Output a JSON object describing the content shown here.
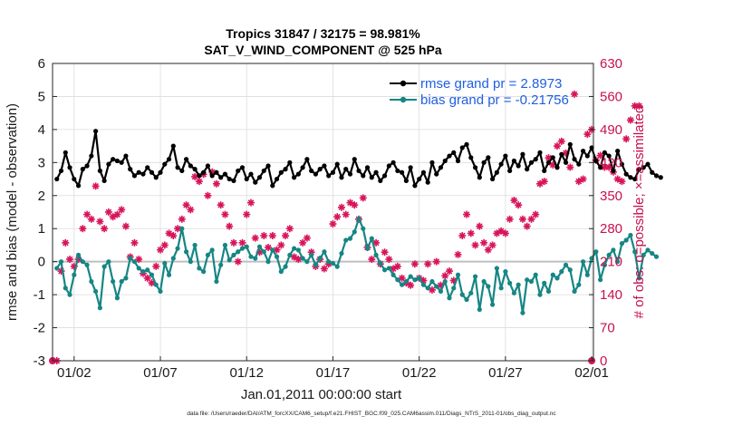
{
  "chart_data": {
    "type": "line",
    "title_line1": "Tropics 31847 / 32175 = 98.981%",
    "title_line2": "SAT_V_WIND_COMPONENT @ 525 hPa",
    "xlabel": "Jan.01,2011 00:00:00 start",
    "ylabel_left": "rmse and bias (model - observation)",
    "ylabel_right": "# of obs: o=possible; ×=assimilated",
    "footnote": "data file: /Users/raeder/DAI/ATM_forcXX/CAM6_setup/f.e21.FHIST_BGC.f09_025.CAM6assim.011/Diags_NTrS_2011-01/obs_diag_output.nc",
    "xlim": [
      0.75,
      32.1
    ],
    "ylim_left": [
      -3,
      6
    ],
    "ylim_right": [
      0,
      630
    ],
    "yticks_left": [
      "-3",
      "-2",
      "-1",
      "0",
      "1",
      "2",
      "3",
      "4",
      "5",
      "6"
    ],
    "yticks_right": [
      "0",
      "70",
      "140",
      "210",
      "280",
      "350",
      "420",
      "490",
      "560",
      "630"
    ],
    "xticks": [
      {
        "x": 2,
        "label": "01/02"
      },
      {
        "x": 7,
        "label": "01/07"
      },
      {
        "x": 12,
        "label": "01/12"
      },
      {
        "x": 17,
        "label": "01/17"
      },
      {
        "x": 22,
        "label": "01/22"
      },
      {
        "x": 27,
        "label": "01/27"
      },
      {
        "x": 32,
        "label": "02/01"
      }
    ],
    "grid": true,
    "legend": [
      "rmse grand pr = 2.8973",
      "bias grand pr = -0.21756"
    ],
    "legend_location": "top-right",
    "colors": {
      "rmse": "#000000",
      "bias": "#168684",
      "obs": "#d8145a",
      "zero": "#bfbfbf",
      "grid": "#dcdcdc"
    },
    "x_step": 0.25,
    "x_start": 1.0,
    "series": [
      {
        "name": "rmse",
        "axis": "left",
        "values": [
          2.5,
          2.75,
          3.3,
          2.85,
          2.5,
          2.3,
          2.8,
          2.9,
          3.2,
          3.95,
          2.75,
          2.45,
          2.95,
          3.1,
          3.05,
          3.0,
          3.2,
          2.8,
          2.6,
          2.7,
          2.65,
          2.85,
          2.7,
          2.55,
          2.7,
          2.95,
          3.1,
          3.5,
          2.85,
          2.75,
          3.1,
          2.9,
          2.8,
          2.6,
          2.7,
          2.9,
          2.6,
          2.7,
          2.55,
          2.65,
          2.5,
          2.45,
          2.75,
          2.85,
          2.5,
          2.65,
          2.4,
          2.55,
          2.75,
          2.9,
          2.3,
          2.5,
          2.7,
          2.8,
          3.0,
          2.55,
          2.65,
          2.85,
          3.1,
          2.75,
          2.65,
          2.8,
          2.9,
          2.6,
          2.7,
          2.95,
          2.55,
          2.8,
          2.65,
          3.1,
          2.75,
          2.6,
          2.85,
          2.55,
          2.7,
          2.45,
          2.6,
          2.9,
          3.0,
          2.75,
          2.7,
          2.45,
          2.85,
          2.3,
          2.5,
          2.7,
          2.4,
          3.0,
          2.65,
          2.85,
          3.05,
          3.2,
          3.3,
          3.05,
          3.45,
          3.55,
          3.15,
          2.85,
          2.55,
          3.0,
          3.15,
          2.5,
          2.7,
          2.95,
          3.2,
          2.75,
          3.05,
          2.9,
          3.25,
          2.8,
          3.0,
          3.1,
          3.3,
          2.75,
          3.0,
          3.15,
          2.85,
          3.25,
          3.0,
          3.55,
          3.1,
          2.95,
          3.35,
          3.2,
          3.45,
          3.05,
          2.85,
          3.3,
          3.2,
          2.75,
          3.35,
          2.95,
          2.65,
          2.55,
          2.5,
          2.8,
          2.85,
          2.95,
          2.7,
          2.6,
          2.55
        ]
      },
      {
        "name": "bias",
        "axis": "left",
        "values": [
          -0.2,
          0.0,
          -0.8,
          -1.0,
          -0.4,
          0.2,
          0.0,
          -0.1,
          -0.6,
          -0.9,
          -1.4,
          -0.15,
          0.0,
          -0.6,
          -1.1,
          -0.6,
          -0.5,
          0.1,
          0.0,
          -0.2,
          -0.3,
          -0.25,
          -0.4,
          -0.7,
          -0.9,
          -0.05,
          -0.4,
          0.1,
          0.4,
          1.0,
          0.3,
          0.0,
          0.5,
          -0.2,
          -0.3,
          0.2,
          0.35,
          -0.6,
          -0.1,
          0.5,
          0.05,
          0.2,
          0.3,
          0.4,
          0.45,
          0.15,
          0.1,
          0.45,
          0.3,
          0.0,
          0.35,
          0.15,
          -0.3,
          -0.15,
          0.2,
          0.4,
          0.35,
          0.1,
          0.0,
          0.2,
          -0.1,
          0.1,
          0.3,
          0.0,
          -0.05,
          -0.15,
          0.25,
          0.65,
          0.7,
          0.9,
          1.3,
          1.0,
          0.4,
          0.7,
          0.2,
          -0.05,
          -0.25,
          -0.2,
          -0.4,
          -0.55,
          -0.7,
          -0.6,
          -0.45,
          -0.55,
          -0.5,
          -0.7,
          -0.8,
          -0.6,
          -0.75,
          -0.9,
          -0.6,
          -1.1,
          -0.8,
          -0.4,
          -1.0,
          -1.15,
          -0.95,
          -0.45,
          -1.45,
          -0.6,
          -0.75,
          -1.3,
          -0.2,
          -0.8,
          -0.3,
          -0.65,
          -0.95,
          -0.7,
          -1.55,
          -0.55,
          -0.6,
          -0.4,
          -1.0,
          -0.65,
          -0.9,
          -0.4,
          -0.5,
          -0.3,
          -0.1,
          -0.25,
          -0.9,
          -0.7,
          0.0,
          -0.4,
          0.1,
          0.3,
          -0.55,
          -0.1,
          0.2,
          0.35,
          0.0,
          0.55,
          0.65,
          0.8,
          0.3,
          -0.5,
          0.2,
          0.35,
          0.25,
          0.15
        ]
      },
      {
        "name": "obs",
        "axis": "right",
        "values": [
          0,
          190,
          250,
          215,
          200,
          215,
          280,
          310,
          300,
          370,
          295,
          280,
          315,
          305,
          310,
          320,
          285,
          220,
          250,
          215,
          185,
          175,
          165,
          200,
          235,
          245,
          270,
          265,
          280,
          300,
          330,
          320,
          390,
          380,
          395,
          350,
          400,
          375,
          330,
          310,
          285,
          250,
          210,
          250,
          310,
          335,
          260,
          230,
          265,
          240,
          265,
          235,
          245,
          265,
          280,
          220,
          215,
          250,
          260,
          230,
          200,
          215,
          195,
          205,
          290,
          305,
          325,
          310,
          335,
          330,
          300,
          345,
          240,
          215,
          250,
          205,
          230,
          215,
          195,
          200,
          175,
          165,
          160,
          205,
          175,
          170,
          205,
          150,
          210,
          160,
          180,
          190,
          170,
          225,
          265,
          310,
          270,
          245,
          285,
          250,
          235,
          245,
          270,
          275,
          270,
          300,
          340,
          330,
          300,
          285,
          300,
          310,
          375,
          380,
          430,
          415,
          455,
          465,
          440,
          410,
          565,
          380,
          385,
          480,
          490,
          425,
          435,
          410,
          410,
          400,
          385,
          380,
          470,
          510,
          540,
          540
        ]
      }
    ]
  }
}
